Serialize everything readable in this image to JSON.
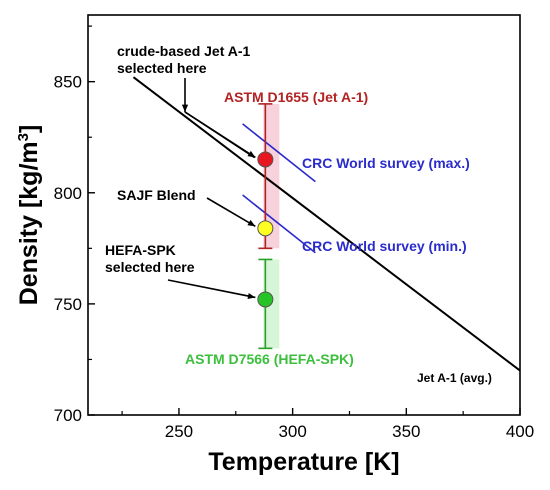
{
  "chart_data": {
    "type": "scatter",
    "xlabel": "Temperature [K]",
    "ylabel_text": "Density [kg/m",
    "ylabel_sup": "3",
    "ylabel_close": "]",
    "xlim": [
      210,
      400
    ],
    "ylim": [
      700,
      880
    ],
    "xticks": [
      250,
      300,
      350,
      400
    ],
    "yticks": [
      700,
      750,
      800,
      850
    ],
    "grid": false,
    "lines": [
      {
        "label": "Jet A-1 (avg.)",
        "x": [
          230,
          400
        ],
        "y": [
          852,
          720
        ],
        "color": "#000000"
      },
      {
        "label": "CRC World survey (max.)",
        "x": [
          278,
          310
        ],
        "y": [
          831,
          805
        ],
        "color": "#2b2bcc"
      },
      {
        "label": "CRC World survey (min.)",
        "x": [
          278,
          310
        ],
        "y": [
          799,
          773
        ],
        "color": "#2b2bcc"
      }
    ],
    "ranges": [
      {
        "label": "ASTM D1655 (Jet A-1)",
        "x": 288,
        "low": 775,
        "high": 840,
        "color": "#b22222",
        "shade": "#f4c2cf"
      },
      {
        "label": "ASTM D7566 (HEFA-SPK)",
        "x": 288,
        "low": 730,
        "high": 770,
        "color": "#2aa02a",
        "shade": "#c9f2c9"
      }
    ],
    "points": [
      {
        "label": "crude-based Jet A-1 selected here",
        "x": 288,
        "y": 815,
        "color": "#e8161f"
      },
      {
        "label": "SAJF Blend",
        "x": 288,
        "y": 784,
        "color": "#ffff22"
      },
      {
        "label": "HEFA-SPK selected here",
        "x": 288,
        "y": 752,
        "color": "#27c427"
      }
    ],
    "annotations": {
      "crude_line1": "crude-based Jet A-1",
      "crude_line2": "selected here",
      "sajf": "SAJF Blend",
      "hefa_line1": "HEFA-SPK",
      "hefa_line2": "selected here",
      "astm_d1655": "ASTM D1655 (Jet A-1)",
      "astm_d7566": "ASTM D7566 (HEFA-SPK)",
      "crc_max": "CRC World survey (max.)",
      "crc_min": "CRC World survey (min.)",
      "jet_avg": "Jet A-1 (avg.)"
    }
  }
}
